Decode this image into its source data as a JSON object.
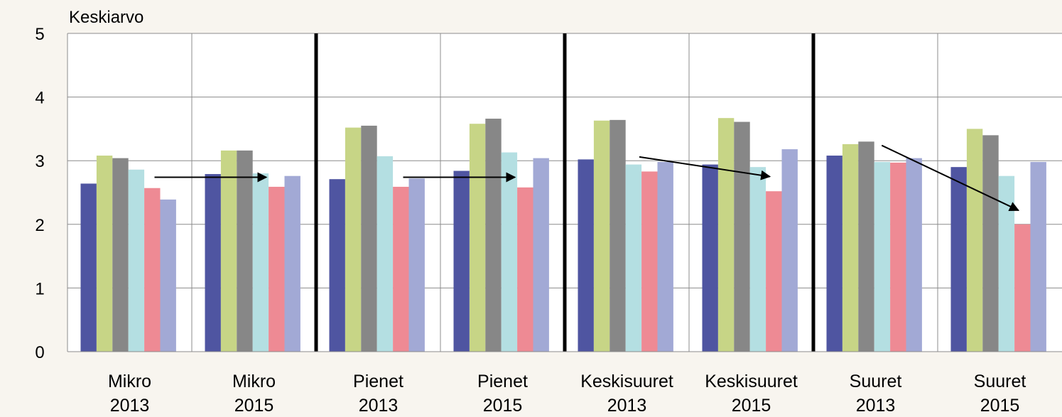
{
  "chart_data": {
    "type": "bar",
    "title": "",
    "ylabel": "Keskiarvo",
    "xlabel": "",
    "ylim": [
      0,
      5
    ],
    "yticks": [
      "0",
      "1",
      "2",
      "3",
      "4",
      "5"
    ],
    "grid": true,
    "legend": "none",
    "categories": [
      [
        "Mikro",
        "2013"
      ],
      [
        "Mikro",
        "2015"
      ],
      [
        "Pienet",
        "2013"
      ],
      [
        "Pienet",
        "2015"
      ],
      [
        "Keskisuuret",
        "2013"
      ],
      [
        "Keskisuuret",
        "2015"
      ],
      [
        "Suuret",
        "2013"
      ],
      [
        "Suuret",
        "2015"
      ]
    ],
    "series": [
      {
        "color": "#4f55a1",
        "values": [
          2.64,
          2.79,
          2.71,
          2.84,
          3.02,
          2.94,
          3.08,
          2.9
        ]
      },
      {
        "color": "#c7d586",
        "values": [
          3.08,
          3.16,
          3.52,
          3.58,
          3.63,
          3.67,
          3.26,
          3.5
        ]
      },
      {
        "color": "#878787",
        "values": [
          3.04,
          3.16,
          3.55,
          3.66,
          3.64,
          3.61,
          3.3,
          3.4
        ]
      },
      {
        "color": "#b4dfe2",
        "values": [
          2.86,
          2.8,
          3.07,
          3.13,
          2.94,
          2.9,
          2.98,
          2.76
        ]
      },
      {
        "color": "#ee8a94",
        "values": [
          2.57,
          2.59,
          2.59,
          2.58,
          2.83,
          2.52,
          2.97,
          2.0
        ]
      },
      {
        "color": "#a2a9d5",
        "values": [
          2.39,
          2.76,
          2.72,
          3.04,
          2.98,
          3.18,
          3.04,
          2.98
        ]
      }
    ],
    "group_separators_after": [
      1,
      3,
      5
    ],
    "annotations": [
      {
        "type": "arrow",
        "from": {
          "category": 0,
          "offset": 0.7,
          "y": 2.74
        },
        "to": {
          "category": 1,
          "offset": 0.6,
          "y": 2.74
        }
      },
      {
        "type": "arrow",
        "from": {
          "category": 2,
          "offset": 0.7,
          "y": 2.74
        },
        "to": {
          "category": 3,
          "offset": 0.6,
          "y": 2.74
        }
      },
      {
        "type": "arrow",
        "from": {
          "category": 4,
          "offset": 0.6,
          "y": 3.06
        },
        "to": {
          "category": 5,
          "offset": 0.65,
          "y": 2.75
        }
      },
      {
        "type": "arrow",
        "from": {
          "category": 6,
          "offset": 0.55,
          "y": 3.24
        },
        "to": {
          "category": 7,
          "offset": 0.65,
          "y": 2.22
        }
      }
    ]
  }
}
